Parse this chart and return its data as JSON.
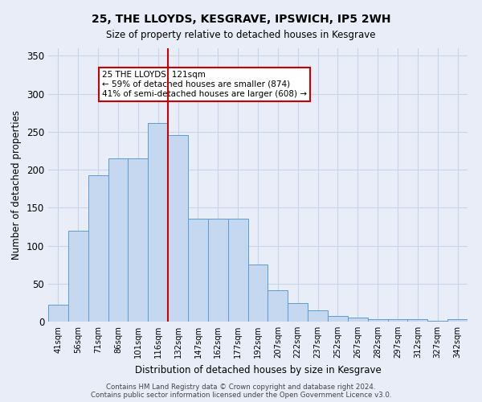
{
  "title": "25, THE LLOYDS, KESGRAVE, IPSWICH, IP5 2WH",
  "subtitle": "Size of property relative to detached houses in Kesgrave",
  "xlabel": "Distribution of detached houses by size in Kesgrave",
  "ylabel": "Number of detached properties",
  "bar_labels": [
    "41sqm",
    "56sqm",
    "71sqm",
    "86sqm",
    "101sqm",
    "116sqm",
    "132sqm",
    "147sqm",
    "162sqm",
    "177sqm",
    "192sqm",
    "207sqm",
    "222sqm",
    "237sqm",
    "252sqm",
    "267sqm",
    "282sqm",
    "297sqm",
    "312sqm",
    "327sqm",
    "342sqm"
  ],
  "bar_values": [
    22,
    120,
    193,
    215,
    215,
    262,
    246,
    136,
    136,
    136,
    75,
    41,
    24,
    15,
    7,
    5,
    3,
    3,
    3,
    1,
    3
  ],
  "bar_color": "#c5d8f0",
  "bar_edge_color": "#5b9bd5",
  "vline_color": "#cc0000",
  "annotation_text": "25 THE LLOYDS: 121sqm\n← 59% of detached houses are smaller (874)\n41% of semi-detached houses are larger (608) →",
  "annotation_box_color": "#ffffff",
  "annotation_box_edge": "#cc0000",
  "grid_color": "#c8d4e8",
  "background_color": "#e8edf8",
  "ylim": [
    0,
    360
  ],
  "yticks": [
    0,
    50,
    100,
    150,
    200,
    250,
    300,
    350
  ],
  "footer": "Contains HM Land Registry data © Crown copyright and database right 2024.\nContains public sector information licensed under the Open Government Licence v3.0."
}
